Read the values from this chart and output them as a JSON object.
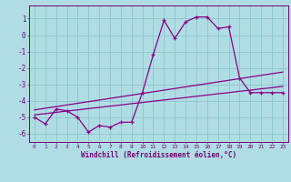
{
  "xlabel": "Windchill (Refroidissement éolien,°C)",
  "x_values": [
    0,
    1,
    2,
    3,
    4,
    5,
    6,
    7,
    8,
    9,
    10,
    11,
    12,
    13,
    14,
    15,
    16,
    17,
    18,
    19,
    20,
    21,
    22,
    23
  ],
  "main_line": [
    -5.0,
    -5.4,
    -4.5,
    -4.6,
    -5.0,
    -5.9,
    -5.5,
    -5.6,
    -5.3,
    -5.3,
    -3.5,
    -1.2,
    0.9,
    -0.2,
    0.8,
    1.1,
    1.1,
    0.4,
    0.5,
    -2.6,
    -3.5,
    -3.5,
    -3.5,
    -3.5
  ],
  "trend1": [
    -4.55,
    -4.45,
    -4.35,
    -4.25,
    -4.15,
    -4.05,
    -3.95,
    -3.85,
    -3.75,
    -3.65,
    -3.55,
    -3.45,
    -3.35,
    -3.25,
    -3.15,
    -3.05,
    -2.95,
    -2.85,
    -2.75,
    -2.65,
    -2.55,
    -2.45,
    -2.35,
    -2.25
  ],
  "trend2": [
    -4.85,
    -4.78,
    -4.7,
    -4.62,
    -4.55,
    -4.47,
    -4.4,
    -4.32,
    -4.25,
    -4.17,
    -4.1,
    -4.02,
    -3.95,
    -3.87,
    -3.8,
    -3.72,
    -3.65,
    -3.57,
    -3.5,
    -3.42,
    -3.35,
    -3.27,
    -3.2,
    -3.12
  ],
  "line_color": "#880088",
  "bg_color": "#b0dde4",
  "grid_color": "#90c8d0",
  "text_color": "#770077",
  "ylim": [
    -6.5,
    1.8
  ],
  "yticks": [
    -6,
    -5,
    -4,
    -3,
    -2,
    -1,
    0,
    1
  ],
  "xlim": [
    -0.5,
    23.5
  ]
}
